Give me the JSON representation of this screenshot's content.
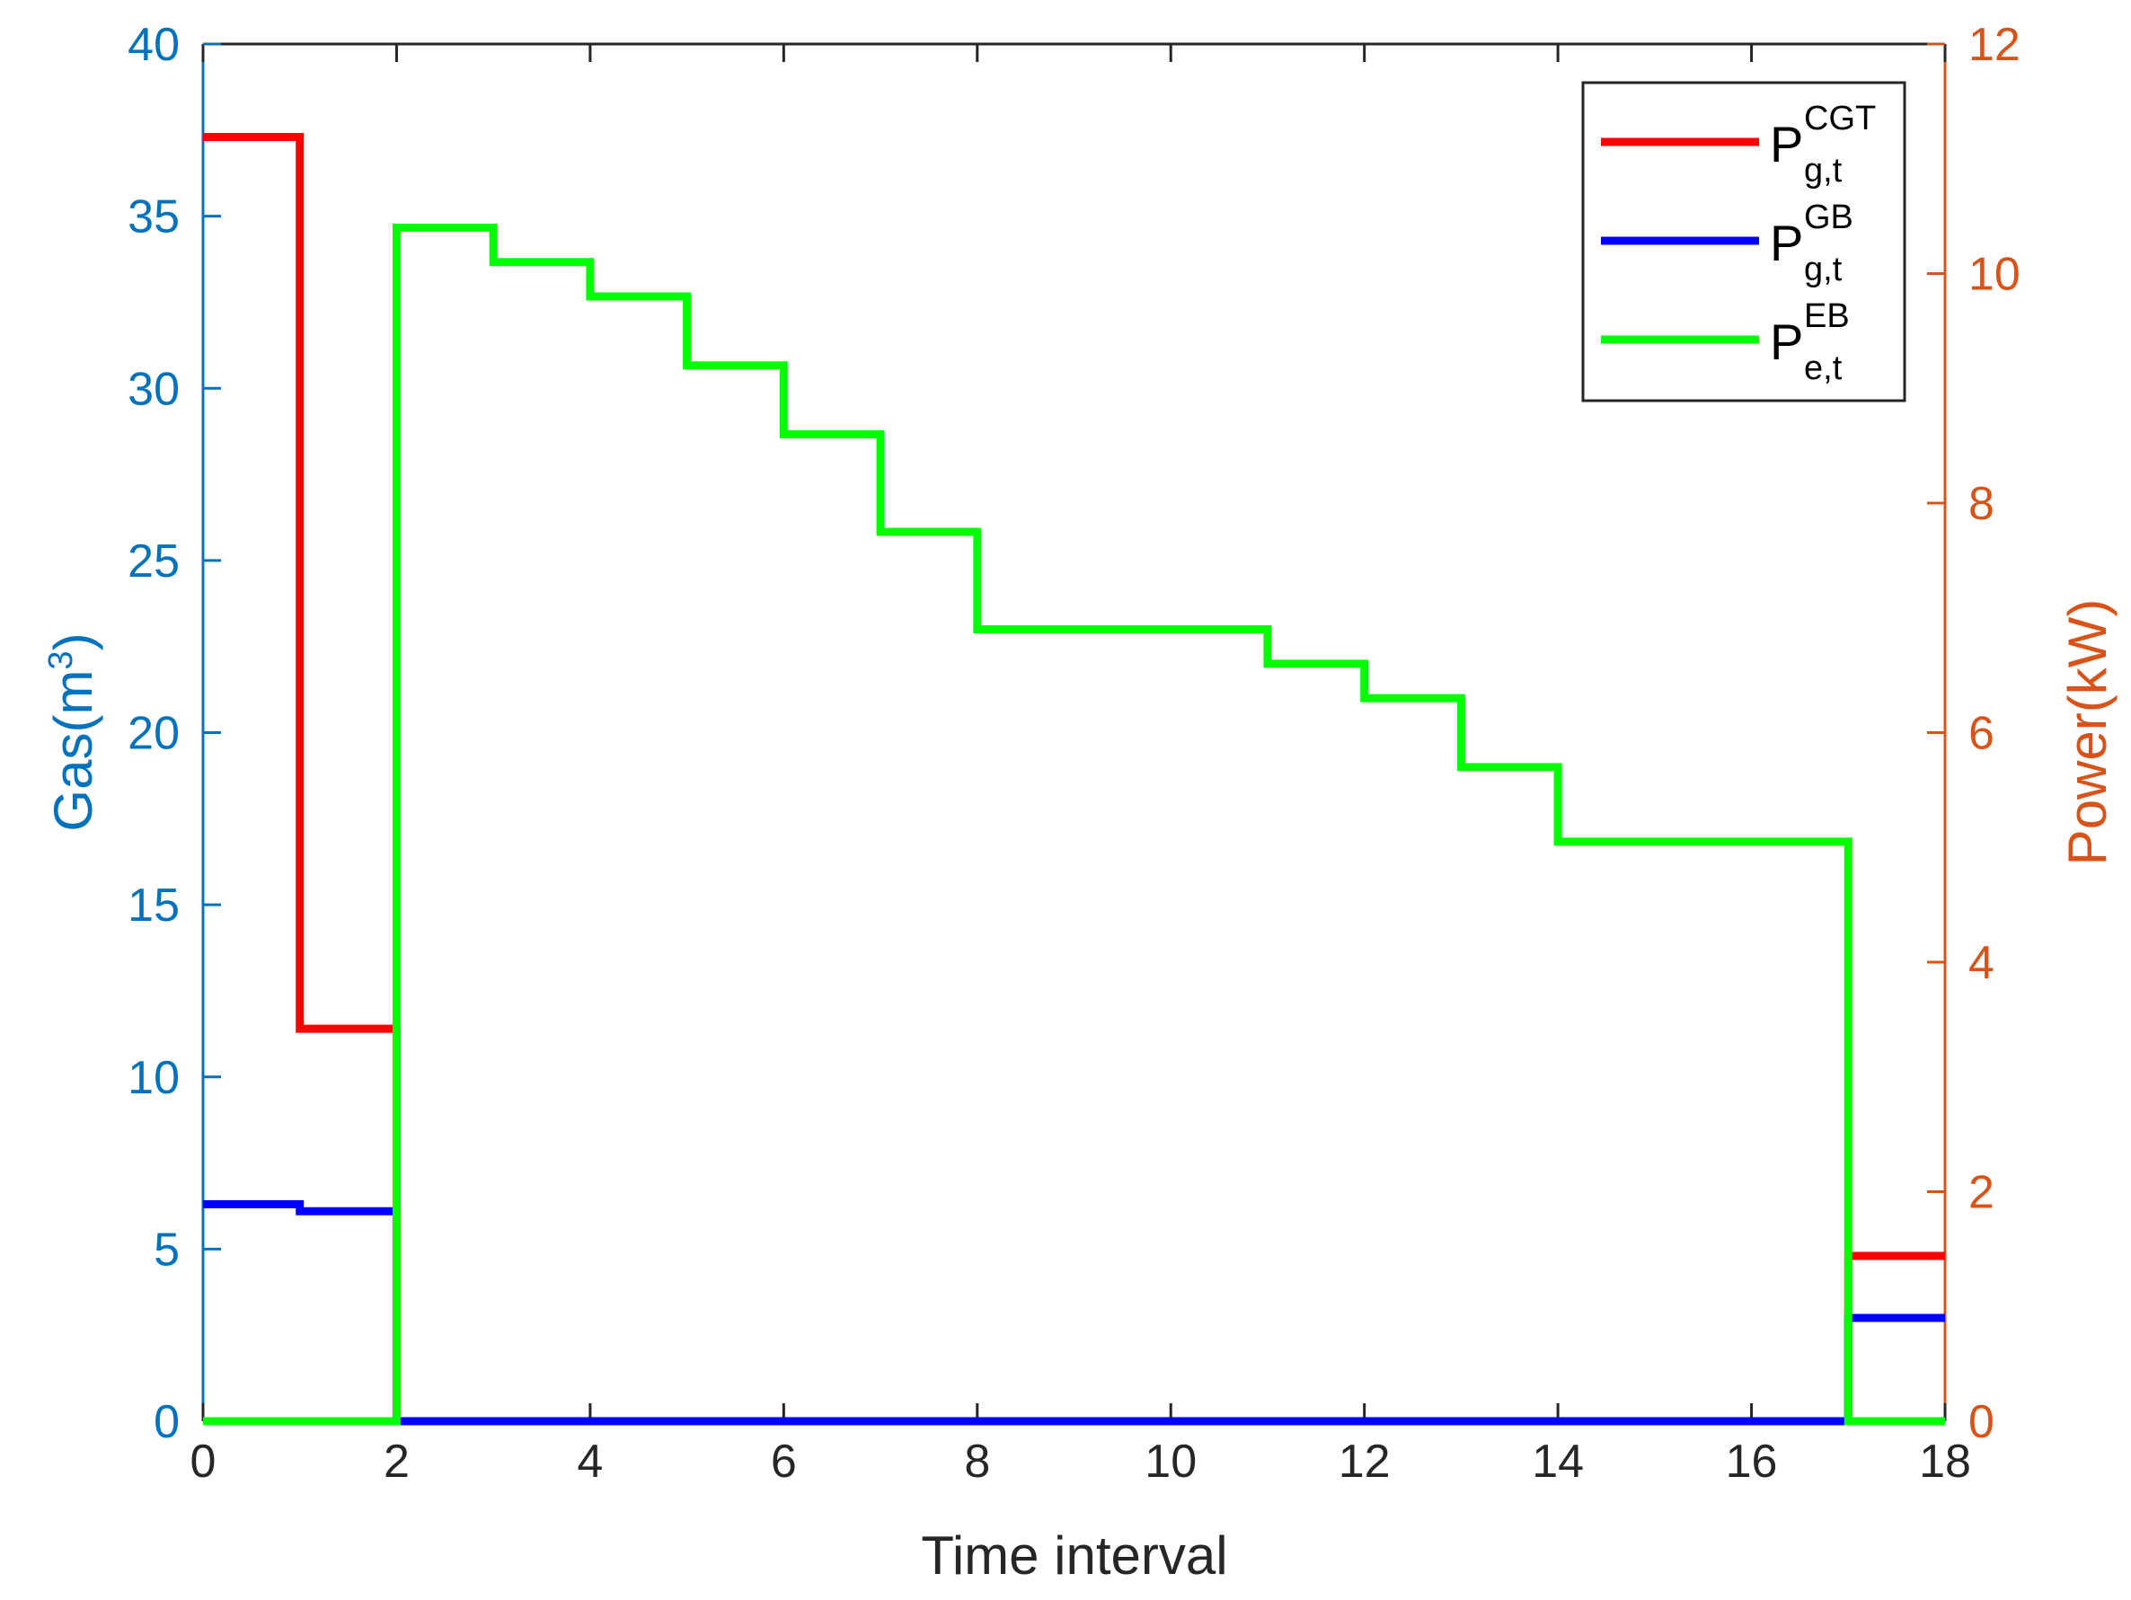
{
  "colors": {
    "left_axis": "#0072BD",
    "right_axis": "#D95319",
    "x_axis": "#262626",
    "CGT": "#FF0000",
    "GB": "#0000FF",
    "EB": "#00FF00"
  },
  "chart_data": {
    "type": "line",
    "step": true,
    "xlabel": "Time interval",
    "ylabel_left": {
      "base": "Gas(m",
      "sup": "3",
      "tail": ")"
    },
    "ylabel_right": "Power(kW)",
    "xlim": [
      0,
      18
    ],
    "ylim_left": [
      0,
      40
    ],
    "ylim_right": [
      0,
      12
    ],
    "x_ticks": [
      "0",
      "2",
      "4",
      "6",
      "8",
      "10",
      "12",
      "14",
      "16",
      "18"
    ],
    "y_left_ticks": [
      "0",
      "5",
      "10",
      "15",
      "20",
      "25",
      "30",
      "35",
      "40"
    ],
    "y_right_ticks": [
      "0",
      "2",
      "4",
      "6",
      "8",
      "10",
      "12"
    ],
    "legend_position": "top-right",
    "grid": false,
    "series": [
      {
        "key": "CGT",
        "legend": {
          "main": "P",
          "sup": "CGT",
          "sub": "g,t"
        },
        "axis": "left",
        "x": [
          0,
          1,
          2,
          3,
          4,
          5,
          6,
          7,
          8,
          9,
          10,
          11,
          12,
          13,
          14,
          15,
          16,
          17,
          18
        ],
        "y": [
          37.3,
          11.4,
          0,
          0,
          0,
          0,
          0,
          0,
          0,
          0,
          0,
          0,
          0,
          0,
          0,
          0,
          0,
          4.8,
          4.8
        ]
      },
      {
        "key": "GB",
        "legend": {
          "main": "P",
          "sup": "GB",
          "sub": "g,t"
        },
        "axis": "left",
        "x": [
          0,
          1,
          2,
          3,
          4,
          5,
          6,
          7,
          8,
          9,
          10,
          11,
          12,
          13,
          14,
          15,
          16,
          17,
          18
        ],
        "y": [
          6.3,
          6.1,
          0,
          0,
          0,
          0,
          0,
          0,
          0,
          0,
          0,
          0,
          0,
          0,
          0,
          0,
          0,
          3.0,
          3.0
        ]
      },
      {
        "key": "EB",
        "legend": {
          "main": "P",
          "sup": "EB",
          "sub": "e,t"
        },
        "axis": "right",
        "x": [
          0,
          1,
          2,
          3,
          4,
          5,
          6,
          7,
          8,
          9,
          10,
          11,
          12,
          13,
          14,
          15,
          16,
          17,
          18
        ],
        "y": [
          0,
          0,
          10.4,
          10.1,
          9.8,
          9.2,
          8.6,
          7.75,
          6.9,
          6.9,
          6.9,
          6.6,
          6.3,
          5.7,
          5.05,
          5.05,
          5.05,
          0,
          0
        ]
      }
    ]
  }
}
